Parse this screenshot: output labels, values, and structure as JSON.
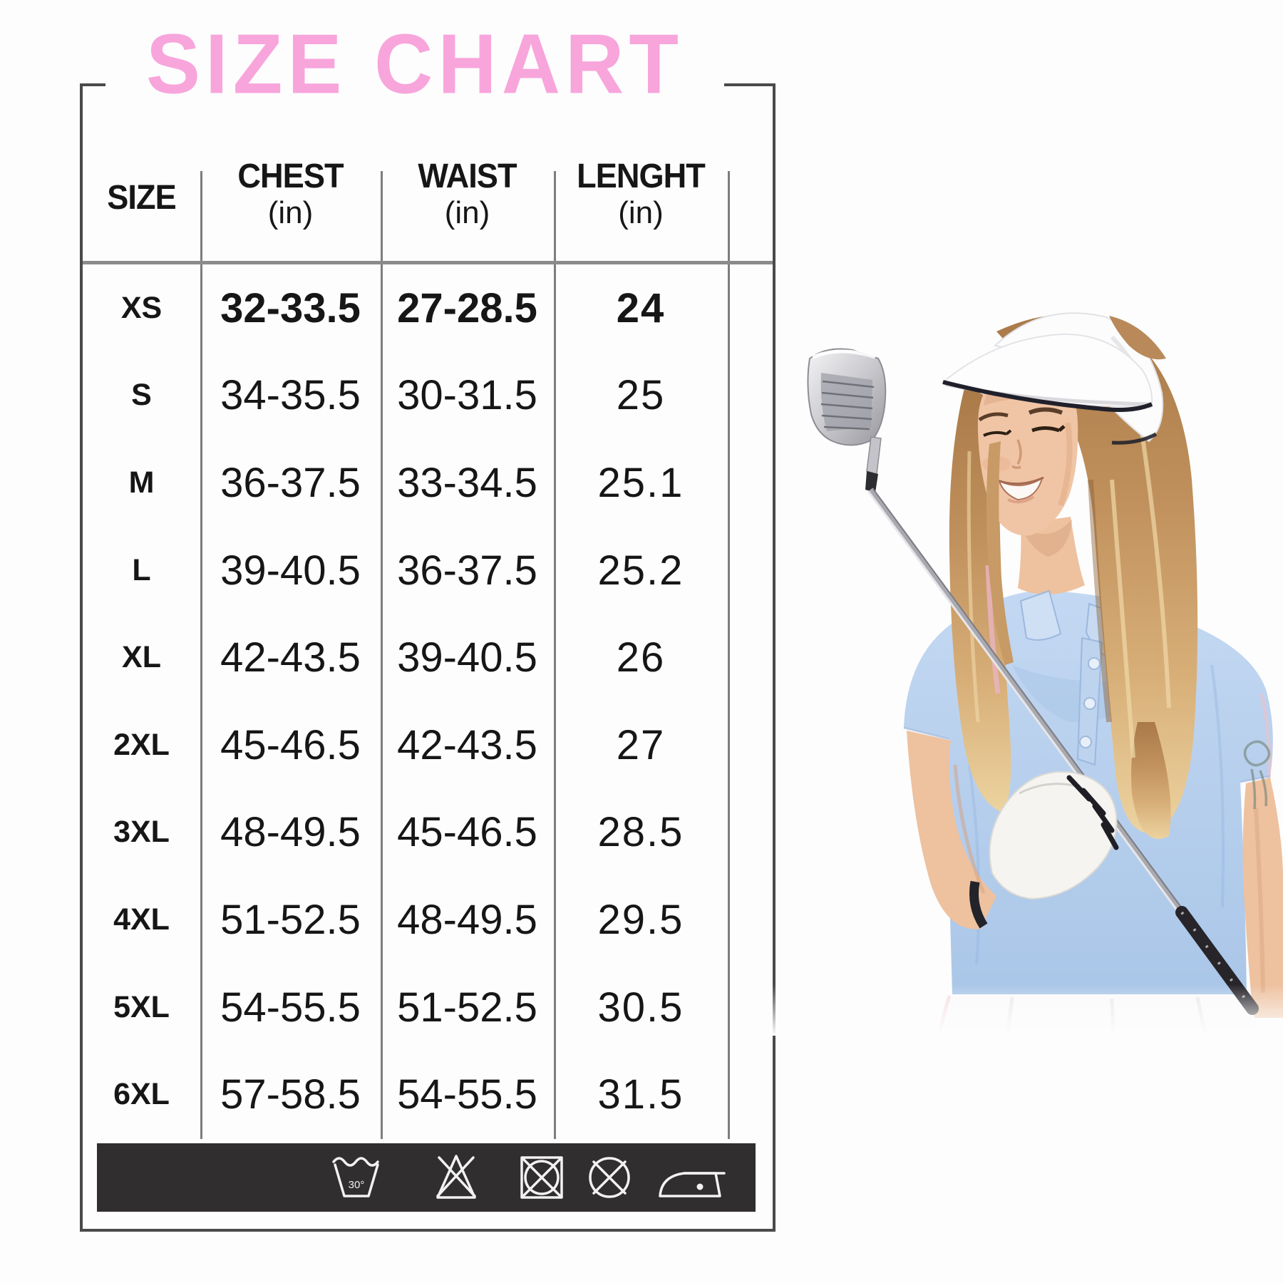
{
  "page": {
    "background": "#fdfdfd"
  },
  "size_chart": {
    "title": "SIZE CHART",
    "title_color": "#f8a5dc",
    "columns": [
      {
        "label": "SIZE",
        "unit": ""
      },
      {
        "label": "CHEST",
        "unit": "(in)"
      },
      {
        "label": "WAIST",
        "unit": "(in)"
      },
      {
        "label": "LENGHT",
        "unit": "(in)"
      }
    ],
    "rows": [
      {
        "size": "XS",
        "chest": "32-33.5",
        "waist": "27-28.5",
        "length": "24",
        "emphasis": true
      },
      {
        "size": "S",
        "chest": "34-35.5",
        "waist": "30-31.5",
        "length": "25",
        "emphasis": false
      },
      {
        "size": "M",
        "chest": "36-37.5",
        "waist": "33-34.5",
        "length": "25.1",
        "emphasis": false
      },
      {
        "size": "L",
        "chest": "39-40.5",
        "waist": "36-37.5",
        "length": "25.2",
        "emphasis": false
      },
      {
        "size": "XL",
        "chest": "42-43.5",
        "waist": "39-40.5",
        "length": "26",
        "emphasis": false
      },
      {
        "size": "2XL",
        "chest": "45-46.5",
        "waist": "42-43.5",
        "length": "27",
        "emphasis": false
      },
      {
        "size": "3XL",
        "chest": "48-49.5",
        "waist": "45-46.5",
        "length": "28.5",
        "emphasis": false
      },
      {
        "size": "4XL",
        "chest": "51-52.5",
        "waist": "48-49.5",
        "length": "29.5",
        "emphasis": false
      },
      {
        "size": "5XL",
        "chest": "54-55.5",
        "waist": "51-52.5",
        "length": "30.5",
        "emphasis": false
      },
      {
        "size": "6XL",
        "chest": "57-58.5",
        "waist": "54-55.5",
        "length": "31.5",
        "emphasis": false
      }
    ]
  },
  "care_bar": {
    "background": "#302e2f",
    "symbol_color": "#f2f2f2",
    "wash_temp_label": "30°",
    "symbols": [
      "wash-30",
      "do-not-bleach",
      "do-not-tumble-dry",
      "do-not-dry-clean",
      "iron"
    ]
  },
  "photo": {
    "alt": "Smiling woman wearing a white sun visor and light blue polo shirt with white skirt, holding a golf club diagonally across her body with a white golf glove"
  },
  "chart_data": {
    "type": "table",
    "title": "SIZE CHART",
    "columns": [
      "SIZE",
      "CHEST (in)",
      "WAIST (in)",
      "LENGHT (in)"
    ],
    "rows": [
      [
        "XS",
        "32-33.5",
        "27-28.5",
        "24"
      ],
      [
        "S",
        "34-35.5",
        "30-31.5",
        "25"
      ],
      [
        "M",
        "36-37.5",
        "33-34.5",
        "25.1"
      ],
      [
        "L",
        "39-40.5",
        "36-37.5",
        "25.2"
      ],
      [
        "XL",
        "42-43.5",
        "39-40.5",
        "26"
      ],
      [
        "2XL",
        "45-46.5",
        "42-43.5",
        "27"
      ],
      [
        "3XL",
        "48-49.5",
        "45-46.5",
        "28.5"
      ],
      [
        "4XL",
        "51-52.5",
        "48-49.5",
        "29.5"
      ],
      [
        "5XL",
        "54-55.5",
        "51-52.5",
        "30.5"
      ],
      [
        "6XL",
        "57-58.5",
        "54-55.5",
        "31.5"
      ]
    ]
  }
}
